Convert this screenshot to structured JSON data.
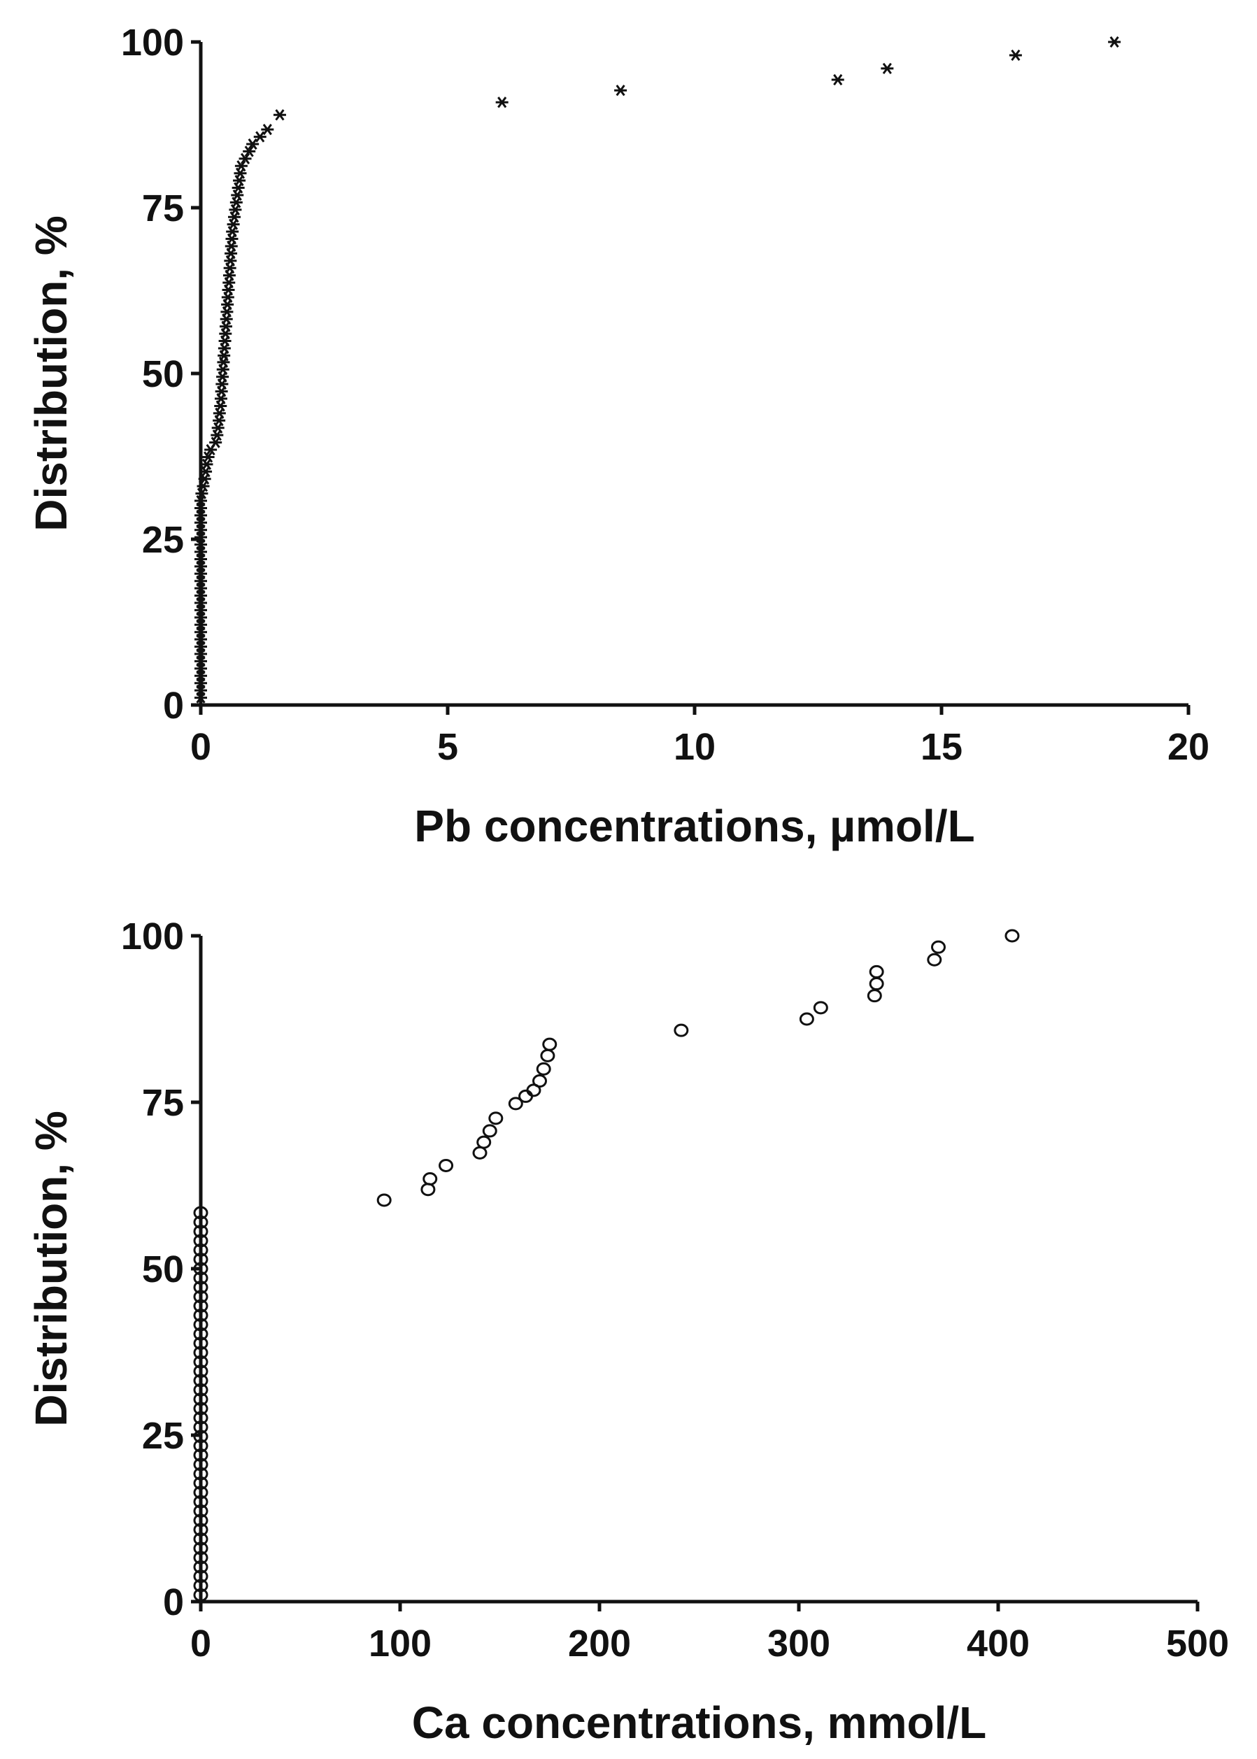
{
  "chart_data": [
    {
      "type": "scatter",
      "title": "",
      "xlabel": "Pb concentrations, µmol/L",
      "ylabel": "Distribution, %",
      "xlim": [
        0,
        20
      ],
      "ylim": [
        0,
        100
      ],
      "xticks": [
        0,
        5,
        10,
        15,
        20
      ],
      "yticks": [
        0,
        25,
        50,
        75,
        100
      ],
      "grid": false,
      "marker": "asterisk",
      "series": [
        {
          "points": [
            [
              0.0,
              1.1
            ],
            [
              0.0,
              2.2
            ],
            [
              0.0,
              3.3
            ],
            [
              0.0,
              4.4
            ],
            [
              0.0,
              5.5
            ],
            [
              0.0,
              6.6
            ],
            [
              0.0,
              7.7
            ],
            [
              0.0,
              8.8
            ],
            [
              0.0,
              9.9
            ],
            [
              0.0,
              11.0
            ],
            [
              0.0,
              12.1
            ],
            [
              0.0,
              13.2
            ],
            [
              0.0,
              14.3
            ],
            [
              0.0,
              15.4
            ],
            [
              0.0,
              16.5
            ],
            [
              0.0,
              17.6
            ],
            [
              0.0,
              18.7
            ],
            [
              0.0,
              19.8
            ],
            [
              0.0,
              20.9
            ],
            [
              0.0,
              22.0
            ],
            [
              0.0,
              23.1
            ],
            [
              0.0,
              24.2
            ],
            [
              0.0,
              25.3
            ],
            [
              0.0,
              26.4
            ],
            [
              0.0,
              27.5
            ],
            [
              0.0,
              28.6
            ],
            [
              0.0,
              29.7
            ],
            [
              0.0,
              30.8
            ],
            [
              0.02,
              31.9
            ],
            [
              0.05,
              33.0
            ],
            [
              0.08,
              34.1
            ],
            [
              0.1,
              35.2
            ],
            [
              0.12,
              36.3
            ],
            [
              0.15,
              37.4
            ],
            [
              0.2,
              38.5
            ],
            [
              0.3,
              39.6
            ],
            [
              0.33,
              40.7
            ],
            [
              0.35,
              41.8
            ],
            [
              0.37,
              42.9
            ],
            [
              0.38,
              44.0
            ],
            [
              0.4,
              45.1
            ],
            [
              0.41,
              46.2
            ],
            [
              0.42,
              47.3
            ],
            [
              0.43,
              48.4
            ],
            [
              0.44,
              49.5
            ],
            [
              0.45,
              50.6
            ],
            [
              0.46,
              51.7
            ],
            [
              0.47,
              52.7
            ],
            [
              0.48,
              53.8
            ],
            [
              0.49,
              54.9
            ],
            [
              0.5,
              56.0
            ],
            [
              0.51,
              57.1
            ],
            [
              0.52,
              58.2
            ],
            [
              0.53,
              59.3
            ],
            [
              0.54,
              60.4
            ],
            [
              0.55,
              61.5
            ],
            [
              0.56,
              62.6
            ],
            [
              0.57,
              63.7
            ],
            [
              0.58,
              64.8
            ],
            [
              0.59,
              65.9
            ],
            [
              0.6,
              67.0
            ],
            [
              0.61,
              68.1
            ],
            [
              0.62,
              69.2
            ],
            [
              0.63,
              70.3
            ],
            [
              0.64,
              71.4
            ],
            [
              0.66,
              72.5
            ],
            [
              0.68,
              73.6
            ],
            [
              0.7,
              74.7
            ],
            [
              0.72,
              75.8
            ],
            [
              0.74,
              76.9
            ],
            [
              0.76,
              78.0
            ],
            [
              0.78,
              79.1
            ],
            [
              0.8,
              80.2
            ],
            [
              0.82,
              81.3
            ],
            [
              0.9,
              82.4
            ],
            [
              0.98,
              83.5
            ],
            [
              1.05,
              84.6
            ],
            [
              1.2,
              85.7
            ],
            [
              1.35,
              86.8
            ],
            [
              1.6,
              89.0
            ],
            [
              6.1,
              90.9
            ],
            [
              8.5,
              92.7
            ],
            [
              12.9,
              94.3
            ],
            [
              13.9,
              96.0
            ],
            [
              16.5,
              98.0
            ],
            [
              18.5,
              100.0
            ]
          ]
        }
      ]
    },
    {
      "type": "scatter",
      "title": "",
      "xlabel": "Ca concentrations, mmol/L",
      "ylabel": "Distribution, %",
      "xlim": [
        0,
        500
      ],
      "ylim": [
        0,
        100
      ],
      "xticks": [
        0,
        100,
        200,
        300,
        400,
        500
      ],
      "yticks": [
        0,
        25,
        50,
        75,
        100
      ],
      "grid": false,
      "marker": "open-circle",
      "series": [
        {
          "points": [
            [
              0,
              1.0
            ],
            [
              0,
              2.4
            ],
            [
              0,
              3.8
            ],
            [
              0,
              5.2
            ],
            [
              0,
              6.6
            ],
            [
              0,
              8.0
            ],
            [
              0,
              9.4
            ],
            [
              0,
              10.8
            ],
            [
              0,
              12.2
            ],
            [
              0,
              13.6
            ],
            [
              0,
              15.0
            ],
            [
              0,
              16.4
            ],
            [
              0,
              17.8
            ],
            [
              0,
              19.2
            ],
            [
              0,
              20.6
            ],
            [
              0,
              22.0
            ],
            [
              0,
              23.4
            ],
            [
              0,
              24.8
            ],
            [
              0,
              26.2
            ],
            [
              0,
              27.6
            ],
            [
              0,
              29.0
            ],
            [
              0,
              30.4
            ],
            [
              0,
              31.8
            ],
            [
              0,
              33.2
            ],
            [
              0,
              34.6
            ],
            [
              0,
              36.0
            ],
            [
              0,
              37.4
            ],
            [
              0,
              38.8
            ],
            [
              0,
              40.2
            ],
            [
              0,
              41.6
            ],
            [
              0,
              43.0
            ],
            [
              0,
              44.4
            ],
            [
              0,
              45.8
            ],
            [
              0,
              47.2
            ],
            [
              0,
              48.6
            ],
            [
              0,
              50.0
            ],
            [
              0,
              51.4
            ],
            [
              0,
              52.8
            ],
            [
              0,
              54.2
            ],
            [
              0,
              55.6
            ],
            [
              0,
              57.0
            ],
            [
              0,
              58.4
            ],
            [
              92,
              60.3
            ],
            [
              114,
              61.9
            ],
            [
              115,
              63.5
            ],
            [
              123,
              65.5
            ],
            [
              140,
              67.4
            ],
            [
              142,
              69.0
            ],
            [
              145,
              70.7
            ],
            [
              148,
              72.6
            ],
            [
              158,
              74.8
            ],
            [
              163,
              75.9
            ],
            [
              167,
              76.8
            ],
            [
              170,
              78.2
            ],
            [
              172,
              80.0
            ],
            [
              174,
              82.0
            ],
            [
              175,
              83.7
            ],
            [
              241,
              85.8
            ],
            [
              304,
              87.5
            ],
            [
              311,
              89.2
            ],
            [
              338,
              91.0
            ],
            [
              339,
              92.8
            ],
            [
              339,
              94.6
            ],
            [
              368,
              96.4
            ],
            [
              370,
              98.3
            ],
            [
              407,
              100.0
            ]
          ]
        }
      ]
    }
  ]
}
